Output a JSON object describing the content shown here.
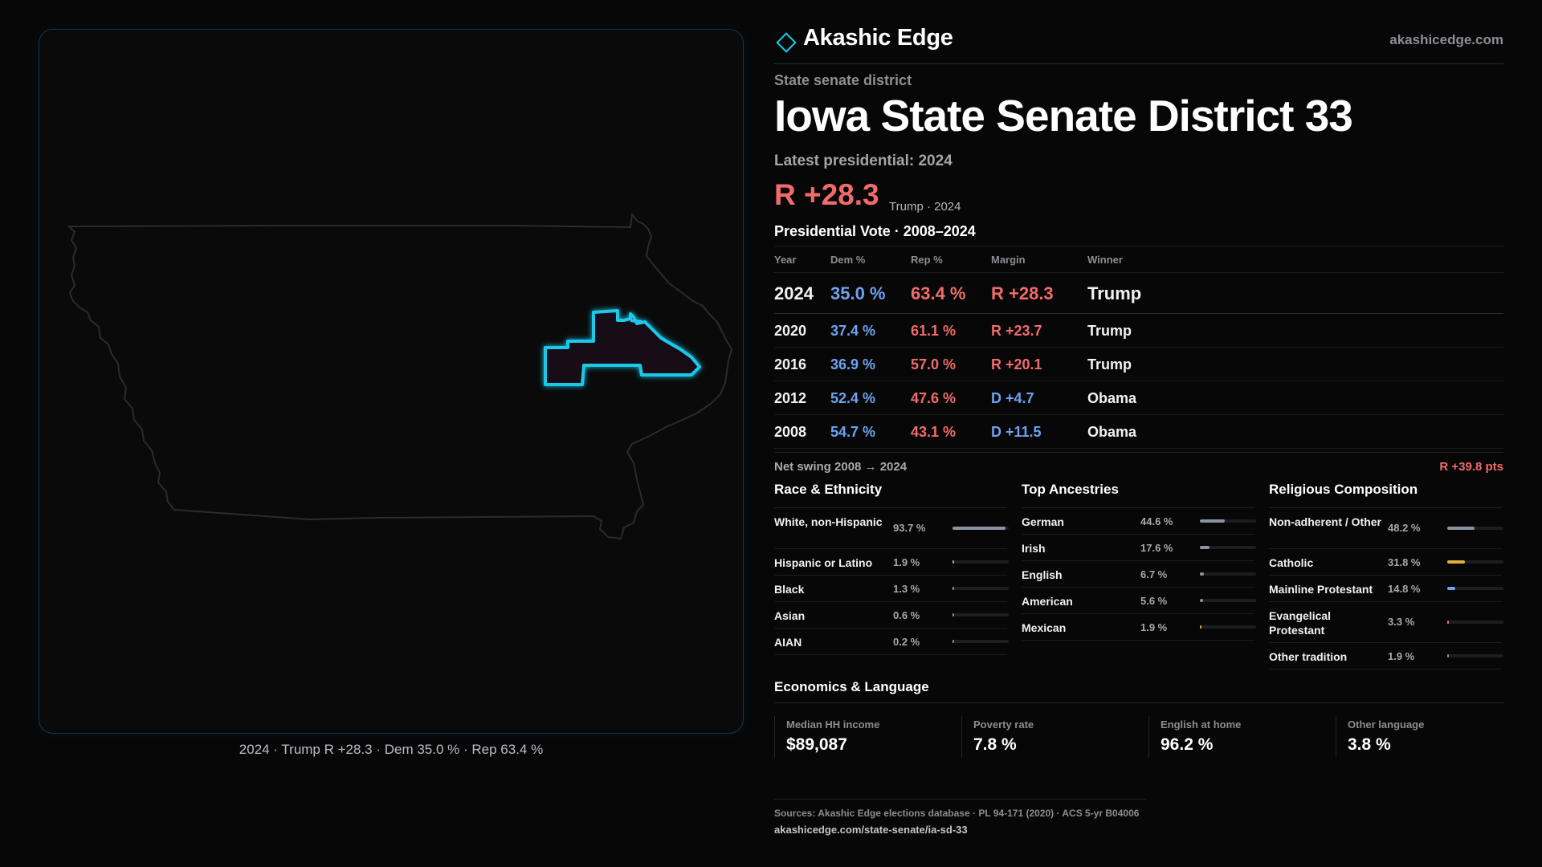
{
  "brand": {
    "name": "Akashic Edge",
    "url": "akashicedge.com"
  },
  "kicker": "State senate district",
  "title": "Iowa State Senate District 33",
  "latest": "Latest presidential: 2024",
  "headline": {
    "margin": "R +28.3",
    "sub": "Trump · 2024"
  },
  "map_caption": "2024 · Trump R +28.3 · Dem 35.0 % · Rep 63.4 %",
  "vote": {
    "heading": "Presidential Vote · 2008–2024",
    "columns": [
      "Year",
      "Dem %",
      "Rep %",
      "Margin",
      "Winner"
    ],
    "rows": [
      {
        "year": "2024",
        "dem": "35.0 %",
        "rep": "63.4 %",
        "margin": "R +28.3",
        "party": "R",
        "winner": "Trump"
      },
      {
        "year": "2020",
        "dem": "37.4 %",
        "rep": "61.1 %",
        "margin": "R +23.7",
        "party": "R",
        "winner": "Trump"
      },
      {
        "year": "2016",
        "dem": "36.9 %",
        "rep": "57.0 %",
        "margin": "R +20.1",
        "party": "R",
        "winner": "Trump"
      },
      {
        "year": "2012",
        "dem": "52.4 %",
        "rep": "47.6 %",
        "margin": "D +4.7",
        "party": "D",
        "winner": "Obama"
      },
      {
        "year": "2008",
        "dem": "54.7 %",
        "rep": "43.1 %",
        "margin": "D +11.5",
        "party": "D",
        "winner": "Obama"
      }
    ],
    "swing_label": "Net swing 2008 → 2024",
    "swing_value": "R +39.8 pts"
  },
  "race": {
    "heading": "Race & Ethnicity",
    "items": [
      {
        "label": "White, non-Hispanic",
        "value": "93.7 %",
        "share": 0.937,
        "color": "#8a93a6"
      },
      {
        "label": "Hispanic or Latino",
        "value": "1.9 %",
        "share": 0.019,
        "color": "#d9a73a"
      },
      {
        "label": "Black",
        "value": "1.3 %",
        "share": 0.013,
        "color": "#6ea2f0"
      },
      {
        "label": "Asian",
        "value": "0.6 %",
        "share": 0.006,
        "color": "#f26b6b"
      },
      {
        "label": "AIAN",
        "value": "0.2 %",
        "share": 0.002,
        "color": "#8a93a6"
      }
    ]
  },
  "ancestry": {
    "heading": "Top Ancestries",
    "items": [
      {
        "label": "German",
        "value": "44.6 %",
        "share": 0.446,
        "color": "#8a93a6"
      },
      {
        "label": "Irish",
        "value": "17.6 %",
        "share": 0.176,
        "color": "#8a93a6"
      },
      {
        "label": "English",
        "value": "6.7 %",
        "share": 0.067,
        "color": "#8a93a6"
      },
      {
        "label": "American",
        "value": "5.6 %",
        "share": 0.056,
        "color": "#8a93a6"
      },
      {
        "label": "Mexican",
        "value": "1.9 %",
        "share": 0.019,
        "color": "#d9a73a"
      }
    ]
  },
  "religion": {
    "heading": "Religious Composition",
    "items": [
      {
        "label": "Non-adherent / Other",
        "value": "48.2 %",
        "share": 0.482,
        "color": "#8a93a6"
      },
      {
        "label": "Catholic",
        "value": "31.8 %",
        "share": 0.318,
        "color": "#e0b040"
      },
      {
        "label": "Mainline Protestant",
        "value": "14.8 %",
        "share": 0.148,
        "color": "#6ea2f0"
      },
      {
        "label": "Evangelical Protestant",
        "value": "3.3 %",
        "share": 0.033,
        "color": "#f26b6b"
      },
      {
        "label": "Other tradition",
        "value": "1.9 %",
        "share": 0.019,
        "color": "#8a93a6"
      }
    ]
  },
  "economics": {
    "heading": "Economics & Language",
    "stats": [
      {
        "label": "Median HH income",
        "value": "$89,087"
      },
      {
        "label": "Poverty rate",
        "value": "7.8 %"
      },
      {
        "label": "English at home",
        "value": "96.2 %"
      },
      {
        "label": "Other language",
        "value": "3.8 %"
      }
    ]
  },
  "footer": {
    "sources": "Sources: Akashic Edge elections database · PL 94-171 (2020) · ACS 5-yr B04006",
    "canonical": "akashicedge.com/state-senate/ia-sd-33"
  },
  "colors": {
    "rep": "#f26b6b",
    "dem": "#6ea2f0",
    "accent": "#1fc8e8"
  }
}
